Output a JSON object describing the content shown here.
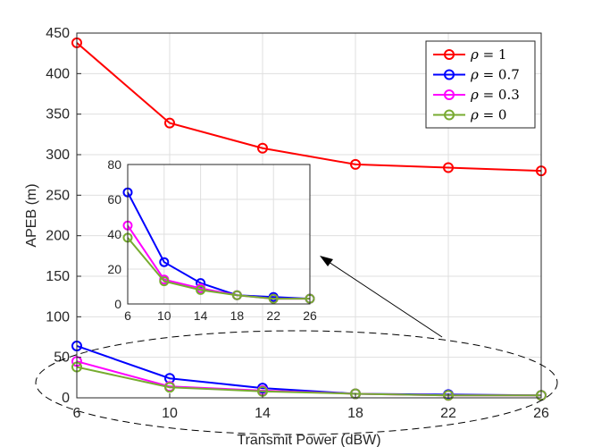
{
  "chart_data": [
    {
      "type": "line",
      "x": [
        6,
        10,
        14,
        18,
        22,
        26
      ],
      "xticks": [
        "6",
        "10",
        "14",
        "18",
        "22",
        "26"
      ],
      "yticks": [
        "0",
        "50",
        "100",
        "150",
        "200",
        "250",
        "300",
        "350",
        "400",
        "450"
      ],
      "xlabel": "Transmit Power (dBW)",
      "ylabel": "APEB (m)",
      "xlim": [
        6,
        26
      ],
      "ylim": [
        0,
        450
      ],
      "grid": true,
      "legend_position": "top-right",
      "series": [
        {
          "name": "1",
          "color": "#ff0000",
          "values": [
            438,
            339,
            308,
            288,
            284,
            280
          ]
        },
        {
          "name": "0.7",
          "color": "#0000ff",
          "values": [
            64,
            24,
            12,
            5,
            4,
            3
          ]
        },
        {
          "name": "0.3",
          "color": "#ff00ff",
          "values": [
            45,
            14,
            9,
            5,
            3,
            3
          ]
        },
        {
          "name": "0",
          "color": "#77ac30",
          "values": [
            38,
            13,
            8,
            5,
            3,
            3
          ]
        }
      ],
      "annotation": "dashed ellipse around low-value curves with arrow pointing to inset"
    },
    {
      "type": "line",
      "x": [
        6,
        10,
        14,
        18,
        22,
        26
      ],
      "xticks": [
        "6",
        "10",
        "14",
        "18",
        "22",
        "26"
      ],
      "yticks": [
        "0",
        "20",
        "40",
        "60",
        "80"
      ],
      "xlim": [
        6,
        26
      ],
      "ylim": [
        0,
        80
      ],
      "grid": true,
      "series": [
        {
          "color": "#0000ff",
          "values": [
            64,
            24,
            12,
            5,
            4,
            3
          ]
        },
        {
          "color": "#ff00ff",
          "values": [
            45,
            14,
            9,
            5,
            3,
            3
          ]
        },
        {
          "color": "#77ac30",
          "values": [
            38,
            13,
            8,
            5,
            3,
            3
          ]
        }
      ]
    }
  ],
  "legend": {
    "symbol": "ρ",
    "items": [
      {
        "label": "1"
      },
      {
        "label": "0.7"
      },
      {
        "label": "0.3"
      },
      {
        "label": "0"
      }
    ]
  }
}
